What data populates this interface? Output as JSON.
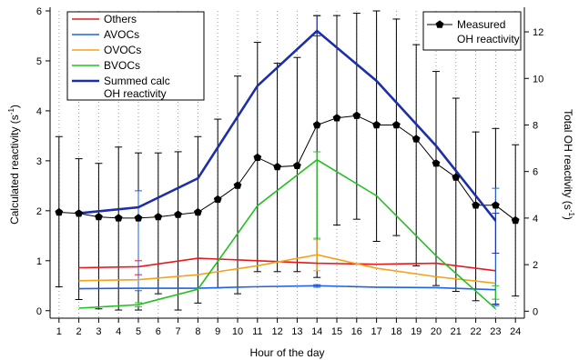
{
  "chart_data": {
    "type": "line",
    "xlabel": "Hour of the day",
    "ylabel_left": "Calculated reactivity (s",
    "ylabel_left_sup": "-1",
    "ylabel_left_tail": ")",
    "ylabel_right": "Total OH reactivity (s",
    "ylabel_right_sup": "-1",
    "ylabel_right_tail": ")",
    "x_ticks": [
      1,
      2,
      3,
      4,
      5,
      6,
      7,
      8,
      9,
      10,
      11,
      12,
      13,
      14,
      15,
      16,
      17,
      18,
      19,
      20,
      21,
      22,
      23,
      24
    ],
    "xlim": [
      0.55,
      24.45
    ],
    "ylim_left": [
      -0.15,
      6.0
    ],
    "yticks_left": [
      0,
      1,
      2,
      3,
      4,
      5,
      6
    ],
    "ylim_right": [
      -0.3,
      12.9
    ],
    "yticks_right": [
      0,
      2,
      4,
      6,
      8,
      10,
      12
    ],
    "gridlines": "dotted vertical at every hour",
    "legend_left": {
      "placement": "top-left",
      "entries": [
        {
          "label": "Others",
          "color": "#e8191d"
        },
        {
          "label": "AVOCs",
          "color": "#1f62e6"
        },
        {
          "label": "OVOCs",
          "color": "#f5a21b"
        },
        {
          "label": "BVOCs",
          "color": "#22c11f"
        },
        {
          "label": "Summed calc",
          "label2": "OH reactivity",
          "color": "#1d2fa8"
        }
      ]
    },
    "legend_right": {
      "placement": "top-right",
      "entries": [
        {
          "label": "Measured",
          "label2": "OH reactivity",
          "color": "#000000"
        }
      ]
    },
    "series_left_axis": [
      {
        "name": "Others",
        "color": "#e8191d",
        "x": [
          2,
          5,
          8,
          11,
          14,
          17,
          20,
          23
        ],
        "y": [
          0.86,
          0.88,
          1.05,
          1.0,
          0.95,
          0.93,
          0.95,
          0.8
        ],
        "err_x": [
          5
        ],
        "err_lo": [
          0.72
        ],
        "err_hi": [
          1.0
        ]
      },
      {
        "name": "AVOCs",
        "color": "#1f62e6",
        "x": [
          2,
          5,
          8,
          11,
          14,
          17,
          20,
          23
        ],
        "y": [
          0.44,
          0.45,
          0.45,
          0.48,
          0.5,
          0.47,
          0.46,
          0.42
        ],
        "err_x": [
          5,
          14,
          23
        ],
        "err_lo": [
          0.4,
          0.47,
          0.1
        ],
        "err_hi": [
          2.4,
          0.52,
          2.45
        ]
      },
      {
        "name": "OVOCs",
        "color": "#f5a21b",
        "x": [
          2,
          5,
          8,
          11,
          14,
          17,
          20,
          23
        ],
        "y": [
          0.6,
          0.62,
          0.72,
          0.9,
          1.12,
          0.85,
          0.68,
          0.55
        ],
        "err_x": [
          14
        ],
        "err_lo": [
          0.8
        ],
        "err_hi": [
          1.42
        ]
      },
      {
        "name": "BVOCs",
        "color": "#22c11f",
        "x": [
          2,
          5,
          8,
          11,
          14,
          17,
          20,
          23
        ],
        "y": [
          0.05,
          0.12,
          0.43,
          2.1,
          3.02,
          2.3,
          1.1,
          0.04
        ],
        "err_x": [
          5,
          14,
          23
        ],
        "err_lo": [
          0.08,
          1.45,
          0.23
        ],
        "err_hi": [
          0.16,
          3.18,
          0.5
        ]
      },
      {
        "name": "Summed calc OH reactivity",
        "color": "#1d2fa8",
        "x": [
          2,
          5,
          8,
          11,
          14,
          17,
          20,
          23
        ],
        "y": [
          1.95,
          2.07,
          2.65,
          4.5,
          5.6,
          4.6,
          3.3,
          1.8
        ],
        "err_x": [
          14,
          23
        ],
        "err_lo": [
          5.5,
          1.15
        ],
        "err_hi": [
          5.9,
          1.95
        ]
      }
    ],
    "series_right_axis": [
      {
        "name": "Measured OH reactivity",
        "color": "#000000",
        "x": [
          1,
          2,
          3,
          4,
          5,
          6,
          7,
          8,
          9,
          10,
          11,
          12,
          13,
          14,
          15,
          16,
          17,
          18,
          19,
          20,
          21,
          22,
          23,
          24
        ],
        "y": [
          4.25,
          4.2,
          4.05,
          4.0,
          4.0,
          4.05,
          4.15,
          4.25,
          4.8,
          5.4,
          6.6,
          6.2,
          6.25,
          8.0,
          8.3,
          8.4,
          8.0,
          8.0,
          7.4,
          6.35,
          5.75,
          4.55,
          4.55,
          3.9
        ],
        "err_lo": [
          1.05,
          0.5,
          0.1,
          0.05,
          0.05,
          0.75,
          0.05,
          0.35,
          1.0,
          0.75,
          1.7,
          1.7,
          1.7,
          1.45,
          3.7,
          3.95,
          3.0,
          3.25,
          1.95,
          1.1,
          0.85,
          0.45,
          0.3,
          0.65
        ],
        "err_hi": [
          7.5,
          6.55,
          6.35,
          7.05,
          6.8,
          6.8,
          6.85,
          7.5,
          8.25,
          10.1,
          11.55,
          10.65,
          10.9,
          12.7,
          12.7,
          12.8,
          12.9,
          12.55,
          11.45,
          10.3,
          9.15,
          7.7,
          7.85,
          7.15
        ]
      }
    ]
  }
}
